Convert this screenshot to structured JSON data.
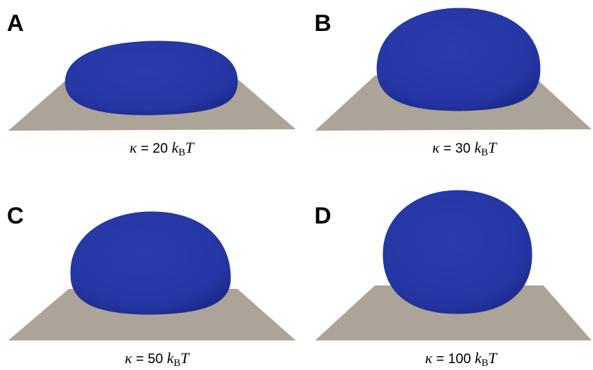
{
  "panels": [
    {
      "label": "A",
      "symbol": "κ",
      "eq": "=",
      "value": "20",
      "unit": "k",
      "unit_sub": "B",
      "unit_tail": "T"
    },
    {
      "label": "B",
      "symbol": "κ",
      "eq": "=",
      "value": "30",
      "unit": "k",
      "unit_sub": "B",
      "unit_tail": "T"
    },
    {
      "label": "C",
      "symbol": "κ",
      "eq": "=",
      "value": "50",
      "unit": "k",
      "unit_sub": "B",
      "unit_tail": "T"
    },
    {
      "label": "D",
      "symbol": "κ",
      "eq": "=",
      "value": "100",
      "unit": "k",
      "unit_sub": "B",
      "unit_tail": "T"
    }
  ]
}
